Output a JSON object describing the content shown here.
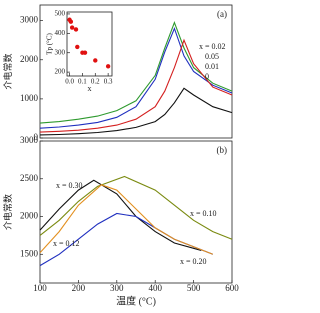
{
  "chart_data": [
    {
      "type": "line",
      "panel_label": "(a)",
      "ylabel": "介电常数",
      "xlim": [
        100,
        600
      ],
      "ylim": [
        0,
        3400
      ],
      "yticks": [
        0,
        1000,
        2000,
        3000
      ],
      "series": [
        {
          "name": "x = 0.02",
          "color": "#2e9a2e",
          "x": [
            100,
            150,
            200,
            250,
            300,
            350,
            400,
            425,
            450,
            475,
            500,
            550,
            600
          ],
          "values": [
            380,
            420,
            480,
            560,
            700,
            950,
            1600,
            2300,
            2950,
            2300,
            1800,
            1400,
            1200
          ]
        },
        {
          "name": "0.05",
          "color": "#1f2fbf",
          "x": [
            100,
            150,
            200,
            250,
            300,
            350,
            400,
            425,
            450,
            475,
            500,
            550,
            600
          ],
          "values": [
            250,
            280,
            330,
            400,
            530,
            800,
            1500,
            2200,
            2800,
            2100,
            1700,
            1350,
            1150
          ]
        },
        {
          "name": "0.01",
          "color": "#d42020",
          "x": [
            100,
            150,
            200,
            250,
            300,
            350,
            400,
            425,
            450,
            475,
            500,
            550,
            600
          ],
          "values": [
            150,
            170,
            200,
            250,
            330,
            480,
            800,
            1200,
            1800,
            2500,
            1900,
            1300,
            1100
          ]
        },
        {
          "name": "0",
          "color": "#111111",
          "x": [
            100,
            150,
            200,
            250,
            300,
            350,
            400,
            425,
            450,
            475,
            500,
            550,
            600
          ],
          "values": [
            80,
            90,
            110,
            140,
            190,
            270,
            420,
            600,
            900,
            1270,
            1100,
            800,
            650
          ]
        }
      ]
    },
    {
      "type": "scatter",
      "xlabel": "x",
      "ylabel": "Tp (°C)",
      "xlim": [
        -0.02,
        0.33
      ],
      "ylim": [
        180,
        510
      ],
      "xticks": [
        {
          "value": 0,
          "label": "0.0"
        },
        0.1,
        0.2,
        0.3
      ],
      "yticks": [
        200,
        300,
        400,
        500
      ],
      "series": [
        {
          "color": "#e01010",
          "x": [
            0,
            0.01,
            0.02,
            0.05,
            0.06,
            0.1,
            0.12,
            0.2,
            0.3
          ],
          "values": [
            470,
            460,
            430,
            420,
            330,
            300,
            300,
            260,
            230
          ]
        }
      ]
    },
    {
      "type": "line",
      "panel_label": "(b)",
      "ylabel": "介电常数",
      "xlabel": "温度 (°C)",
      "xlim": [
        100,
        600
      ],
      "ylim": [
        1120,
        3000
      ],
      "xticks": [
        100,
        200,
        300,
        400,
        500,
        600
      ],
      "yticks": [
        1500,
        2000,
        2500,
        3000
      ],
      "series": [
        {
          "name": "x = 0.30",
          "color": "#111111",
          "x": [
            100,
            150,
            200,
            240,
            300,
            350,
            400,
            450,
            500,
            520
          ],
          "values": [
            1820,
            2100,
            2350,
            2480,
            2300,
            2000,
            1800,
            1650,
            1580,
            1550
          ]
        },
        {
          "name": "x = 0.10",
          "color": "#7a8a10",
          "x": [
            100,
            150,
            200,
            250,
            320,
            400,
            450,
            500,
            550,
            600
          ],
          "values": [
            1750,
            1950,
            2200,
            2400,
            2530,
            2350,
            2150,
            1950,
            1800,
            1700
          ]
        },
        {
          "name": "x = 0.12",
          "color": "#1f2fbf",
          "x": [
            100,
            150,
            200,
            250,
            300,
            350,
            400,
            450,
            500,
            550
          ],
          "values": [
            1350,
            1500,
            1700,
            1900,
            2040,
            2000,
            1850,
            1700,
            1600,
            1500
          ]
        },
        {
          "name": "x = 0.20",
          "color": "#e39020",
          "x": [
            100,
            150,
            200,
            260,
            300,
            350,
            400,
            450,
            500,
            550
          ],
          "values": [
            1520,
            1800,
            2150,
            2420,
            2350,
            2100,
            1850,
            1700,
            1600,
            1500
          ]
        }
      ]
    }
  ]
}
